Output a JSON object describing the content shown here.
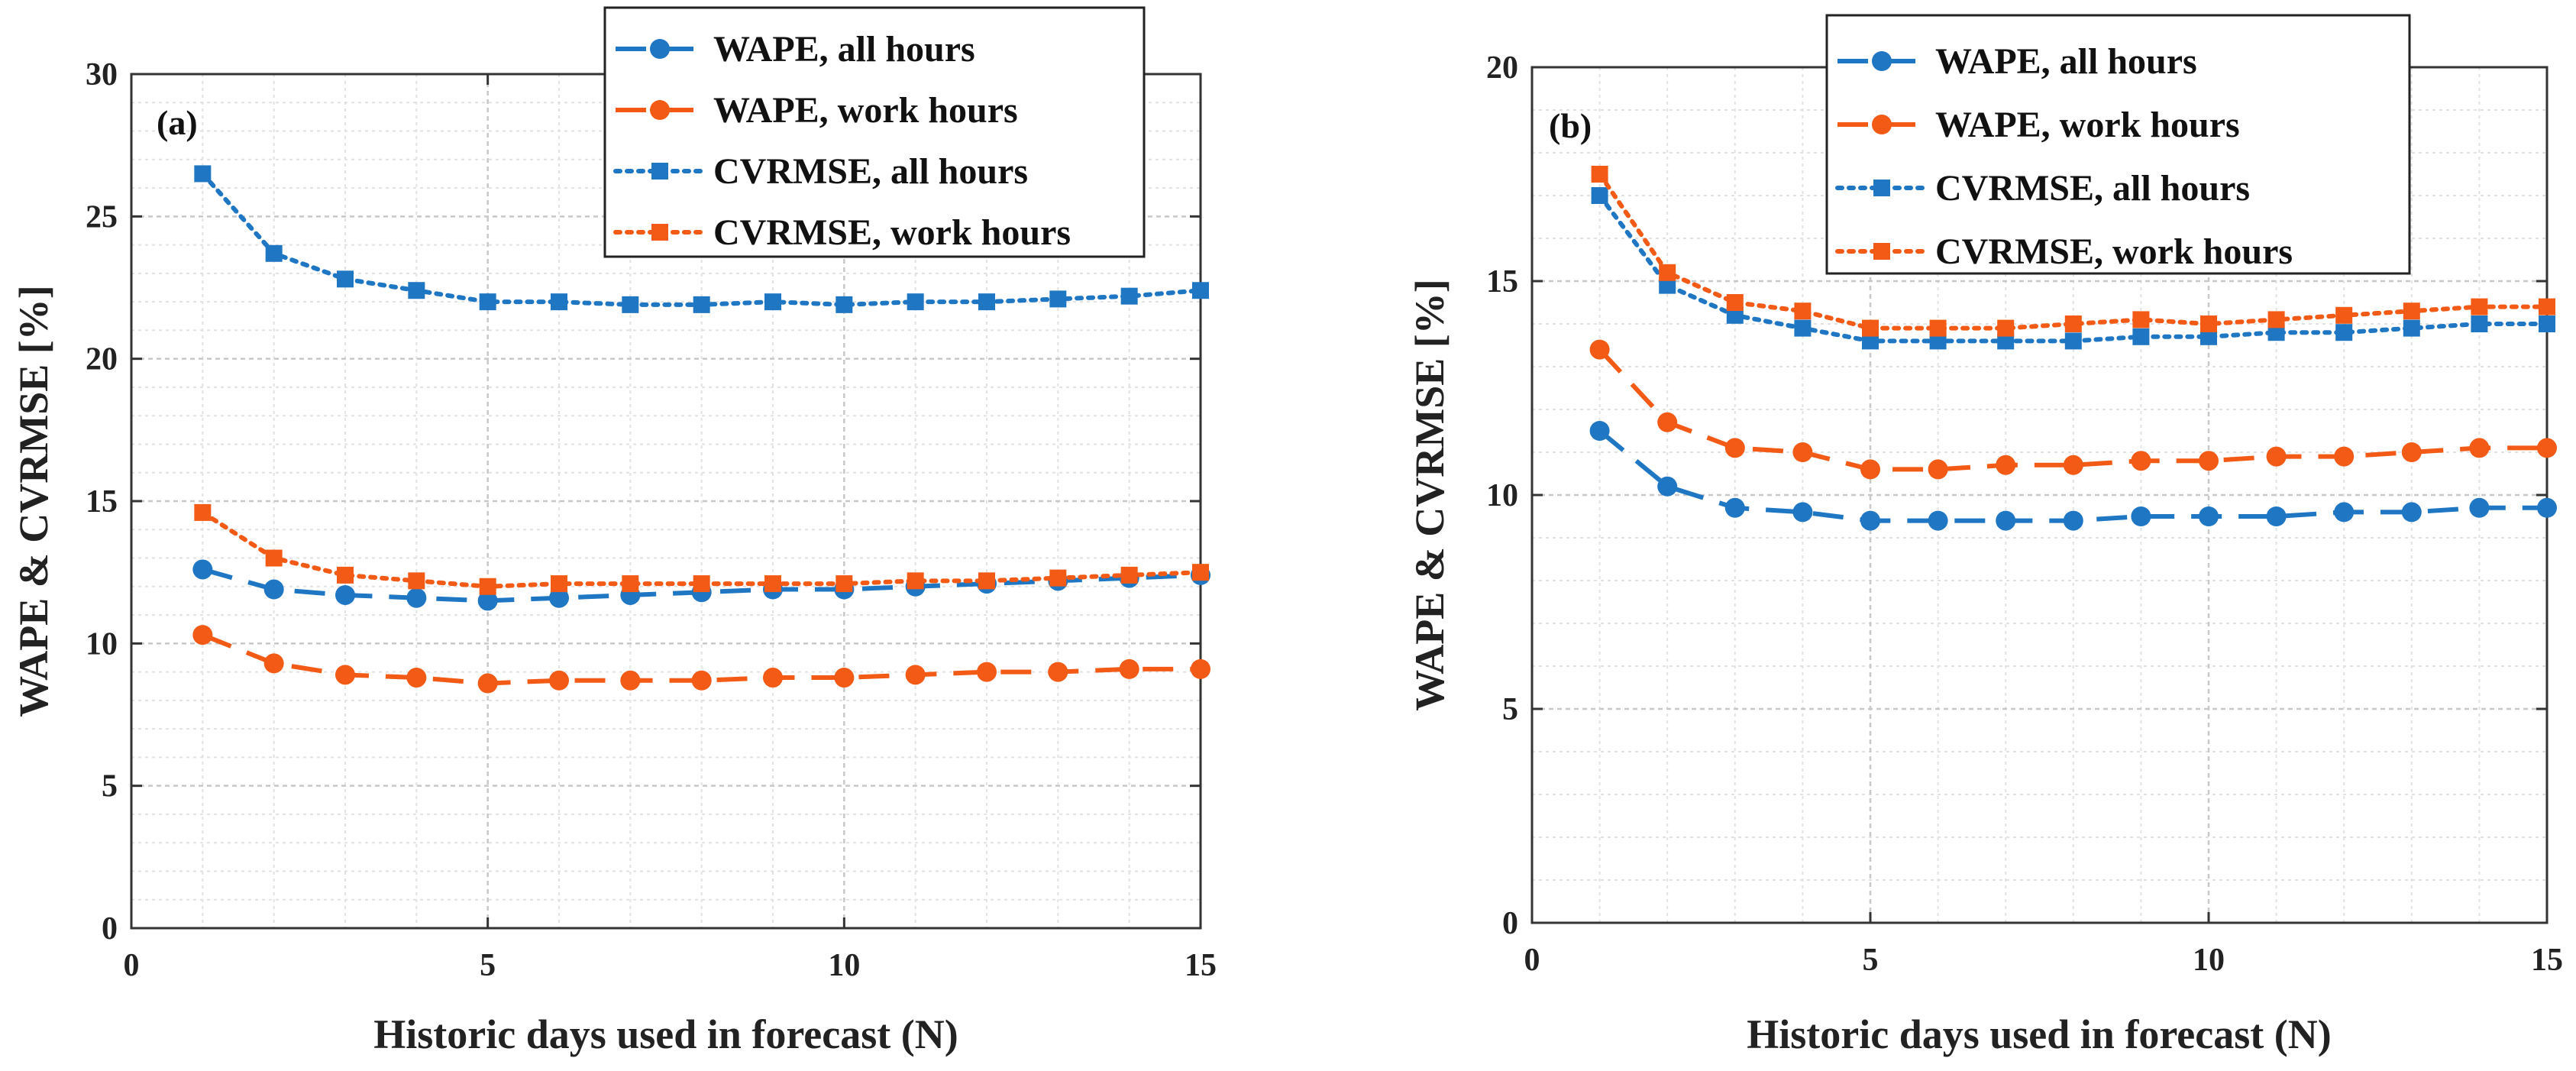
{
  "colors": {
    "blue": "#1f77c4",
    "orange": "#f25a16",
    "grid_major": "#c8c8c8",
    "grid_minor": "#e2e2e2",
    "axis": "#333333"
  },
  "chart_data": [
    {
      "type": "line",
      "panel_label": "(a)",
      "xlabel": "Historic days used in forecast (N)",
      "ylabel": "WAPE & CVRMSE [%]",
      "xlim": [
        0,
        15
      ],
      "ylim": [
        0,
        30
      ],
      "xticks": [
        0,
        5,
        10,
        15
      ],
      "yticks": [
        0,
        5,
        10,
        15,
        20,
        25,
        30
      ],
      "grid": true,
      "legend_position": "top-right",
      "x": [
        1,
        2,
        3,
        4,
        5,
        6,
        7,
        8,
        9,
        10,
        11,
        12,
        13,
        14,
        15
      ],
      "series": [
        {
          "name": "WAPE, all hours",
          "color": "blue",
          "marker": "circle",
          "linestyle": "dashed",
          "values": [
            12.6,
            11.9,
            11.7,
            11.6,
            11.5,
            11.6,
            11.7,
            11.8,
            11.9,
            11.9,
            12.0,
            12.1,
            12.2,
            12.3,
            12.4
          ]
        },
        {
          "name": "WAPE, work hours",
          "color": "orange",
          "marker": "circle",
          "linestyle": "dashed",
          "values": [
            10.3,
            9.3,
            8.9,
            8.8,
            8.6,
            8.7,
            8.7,
            8.7,
            8.8,
            8.8,
            8.9,
            9.0,
            9.0,
            9.1,
            9.1
          ]
        },
        {
          "name": "CVRMSE, all hours",
          "color": "blue",
          "marker": "square",
          "linestyle": "dotted",
          "values": [
            26.5,
            23.7,
            22.8,
            22.4,
            22.0,
            22.0,
            21.9,
            21.9,
            22.0,
            21.9,
            22.0,
            22.0,
            22.1,
            22.2,
            22.4
          ]
        },
        {
          "name": "CVRMSE, work hours",
          "color": "orange",
          "marker": "square",
          "linestyle": "dotted",
          "values": [
            14.6,
            13.0,
            12.4,
            12.2,
            12.0,
            12.1,
            12.1,
            12.1,
            12.1,
            12.1,
            12.2,
            12.2,
            12.3,
            12.4,
            12.5
          ]
        }
      ]
    },
    {
      "type": "line",
      "panel_label": "(b)",
      "xlabel": "Historic days used in forecast (N)",
      "ylabel": "WAPE & CVRMSE [%]",
      "xlim": [
        0,
        15
      ],
      "ylim": [
        0,
        20
      ],
      "xticks": [
        0,
        5,
        10,
        15
      ],
      "yticks": [
        0,
        5,
        10,
        15,
        20
      ],
      "grid": true,
      "legend_position": "top-right",
      "x": [
        1,
        2,
        3,
        4,
        5,
        6,
        7,
        8,
        9,
        10,
        11,
        12,
        13,
        14,
        15
      ],
      "series": [
        {
          "name": "WAPE, all hours",
          "color": "blue",
          "marker": "circle",
          "linestyle": "dashed",
          "values": [
            11.5,
            10.2,
            9.7,
            9.6,
            9.4,
            9.4,
            9.4,
            9.4,
            9.5,
            9.5,
            9.5,
            9.6,
            9.6,
            9.7,
            9.7
          ]
        },
        {
          "name": "WAPE, work hours",
          "color": "orange",
          "marker": "circle",
          "linestyle": "dashed",
          "values": [
            13.4,
            11.7,
            11.1,
            11.0,
            10.6,
            10.6,
            10.7,
            10.7,
            10.8,
            10.8,
            10.9,
            10.9,
            11.0,
            11.1,
            11.1
          ]
        },
        {
          "name": "CVRMSE, all hours",
          "color": "blue",
          "marker": "square",
          "linestyle": "dotted",
          "values": [
            17.0,
            14.9,
            14.2,
            13.9,
            13.6,
            13.6,
            13.6,
            13.6,
            13.7,
            13.7,
            13.8,
            13.8,
            13.9,
            14.0,
            14.0
          ]
        },
        {
          "name": "CVRMSE, work hours",
          "color": "orange",
          "marker": "square",
          "linestyle": "dotted",
          "values": [
            17.5,
            15.2,
            14.5,
            14.3,
            13.9,
            13.9,
            13.9,
            14.0,
            14.1,
            14.0,
            14.1,
            14.2,
            14.3,
            14.4,
            14.4
          ]
        }
      ]
    }
  ]
}
